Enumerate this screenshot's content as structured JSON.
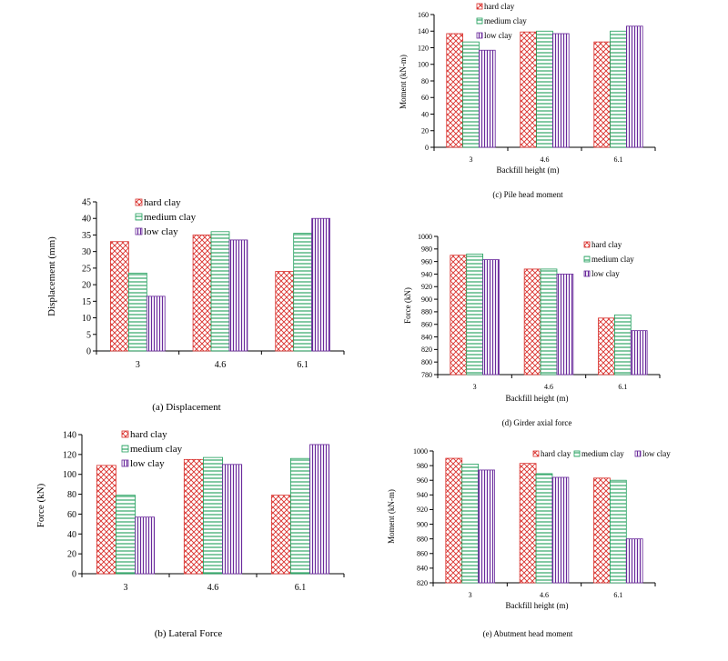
{
  "colors": {
    "hard": "#d9302c",
    "medium": "#1f9e5b",
    "low": "#6a2a9c",
    "axis": "#000000"
  },
  "series_names": [
    "hard clay",
    "medium clay",
    "low clay"
  ],
  "chart_data": [
    {
      "id": "a",
      "type": "bar",
      "caption": "(a) Displacement",
      "xlabel": "",
      "ylabel": "Displacement (mm)",
      "categories": [
        "3",
        "4.6",
        "6.1"
      ],
      "ylim": [
        0,
        45
      ],
      "ytick_step": 5,
      "ticks": [
        "0",
        "5",
        "10",
        "15",
        "20",
        "25",
        "30",
        "35",
        "40",
        "45"
      ],
      "legend": "top-left-inside",
      "series": [
        {
          "name": "hard clay",
          "values": [
            33,
            35,
            24
          ]
        },
        {
          "name": "medium clay",
          "values": [
            23.5,
            36,
            35.5
          ]
        },
        {
          "name": "low clay",
          "values": [
            16.5,
            33.5,
            40
          ]
        }
      ]
    },
    {
      "id": "b",
      "type": "bar",
      "caption": "(b) Lateral Force",
      "xlabel": "",
      "ylabel": "Force (kN)",
      "categories": [
        "3",
        "4.6",
        "6.1"
      ],
      "ylim": [
        0,
        140
      ],
      "ytick_step": 20,
      "ticks": [
        "0",
        "20",
        "40",
        "60",
        "80",
        "100",
        "120",
        "140"
      ],
      "legend": "top-left-inside",
      "series": [
        {
          "name": "hard clay",
          "values": [
            109,
            115,
            79
          ]
        },
        {
          "name": "medium clay",
          "values": [
            79,
            117,
            116
          ]
        },
        {
          "name": "low clay",
          "values": [
            57,
            110,
            130
          ]
        }
      ]
    },
    {
      "id": "c",
      "type": "bar",
      "caption": "(c) Pile head moment",
      "xlabel": "Backfill height (m)",
      "ylabel": "Moment (kN-m)",
      "categories": [
        "3",
        "4.6",
        "6.1"
      ],
      "ylim": [
        0,
        160
      ],
      "ytick_step": 20,
      "ticks": [
        "0",
        "20",
        "40",
        "60",
        "80",
        "100",
        "120",
        "140",
        "160"
      ],
      "legend": "top-left-inside",
      "series": [
        {
          "name": "hard clay",
          "values": [
            137,
            139,
            127
          ]
        },
        {
          "name": "medium clay",
          "values": [
            127,
            140,
            140
          ]
        },
        {
          "name": "low clay",
          "values": [
            117,
            137,
            146
          ]
        }
      ]
    },
    {
      "id": "d",
      "type": "bar",
      "caption": "(d) Girder axial force",
      "xlabel": "Backfill height (m)",
      "ylabel": "Force (kN)",
      "categories": [
        "3",
        "4.6",
        "6.1"
      ],
      "ylim": [
        780,
        1000
      ],
      "ytick_step": 20,
      "ticks": [
        "780",
        "800",
        "820",
        "840",
        "860",
        "880",
        "900",
        "920",
        "940",
        "960",
        "980",
        "1000"
      ],
      "legend": "top-right-inside",
      "series": [
        {
          "name": "hard clay",
          "values": [
            970,
            948,
            870
          ]
        },
        {
          "name": "medium clay",
          "values": [
            972,
            948,
            875
          ]
        },
        {
          "name": "low clay",
          "values": [
            963,
            940,
            850
          ]
        }
      ]
    },
    {
      "id": "e",
      "type": "bar",
      "caption": "(e) Abutment head moment",
      "xlabel": "Backfill height (m)",
      "ylabel": "Moment (kN-m)",
      "categories": [
        "3",
        "4.6",
        "6.1"
      ],
      "ylim": [
        820,
        1000
      ],
      "ytick_step": 20,
      "ticks": [
        "820",
        "840",
        "860",
        "880",
        "900",
        "920",
        "940",
        "960",
        "980",
        "1000"
      ],
      "legend": "top-right-horizontal",
      "series": [
        {
          "name": "hard clay",
          "values": [
            990,
            983,
            963
          ]
        },
        {
          "name": "medium clay",
          "values": [
            982,
            969,
            960
          ]
        },
        {
          "name": "low clay",
          "values": [
            974,
            964,
            880
          ]
        }
      ]
    }
  ]
}
